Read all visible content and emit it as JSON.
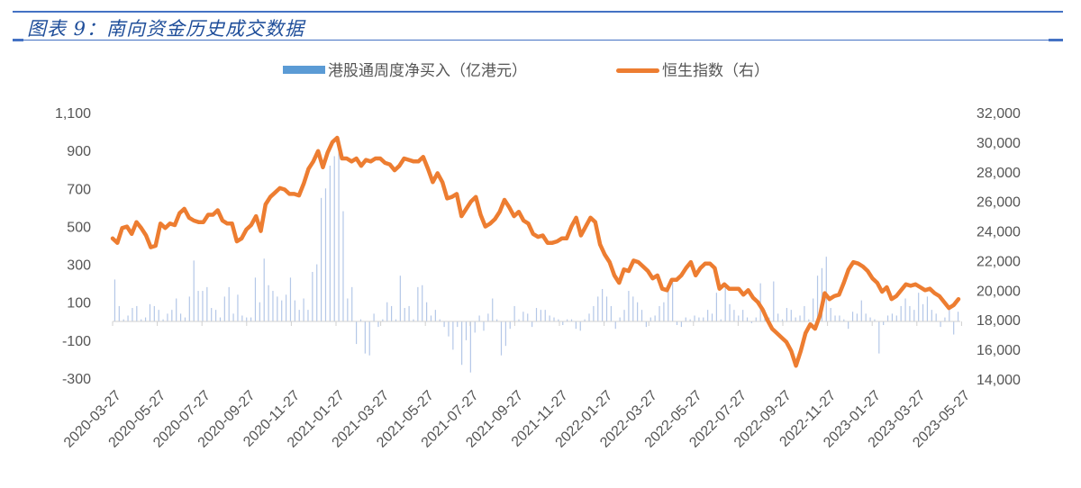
{
  "header": {
    "title": "图表 9：南向资金历史成交数据"
  },
  "legend": {
    "bar_label": "港股通周度净买入（亿港元）",
    "line_label": "恒生指数（右）"
  },
  "colors": {
    "bar": "#5b9bd5",
    "bar_thin": "#b4c7e7",
    "line": "#ed7d31",
    "rule": "#4472c4",
    "axis_text": "#555555"
  },
  "chart_data": {
    "type": "bar+line",
    "title": "图表 9：南向资金历史成交数据",
    "xlabel": "",
    "ylabel_left": "港股通周度净买入（亿港元）",
    "ylabel_right": "恒生指数",
    "left_ylim": [
      -300,
      1100
    ],
    "left_ticks": [
      "1,100",
      "900",
      "700",
      "500",
      "300",
      "100",
      "-100",
      "-300"
    ],
    "right_ylim": [
      14000,
      32000
    ],
    "right_ticks": [
      "32,000",
      "30,000",
      "28,000",
      "26,000",
      "24,000",
      "22,000",
      "20,000",
      "18,000",
      "16,000",
      "14,000"
    ],
    "x_ticks": [
      "2020-03-27",
      "2020-05-27",
      "2020-07-27",
      "2020-09-27",
      "2020-11-27",
      "2021-01-27",
      "2021-03-27",
      "2021-05-27",
      "2021-07-27",
      "2021-09-27",
      "2021-11-27",
      "2022-01-27",
      "2022-03-27",
      "2022-05-27",
      "2022-07-27",
      "2022-09-27",
      "2022-11-27",
      "2023-01-27",
      "2023-03-27",
      "2023-05-27"
    ],
    "grid": false,
    "legend_position": "top",
    "series": [
      {
        "name": "港股通周度净买入（亿港元）",
        "type": "bar",
        "axis": "left",
        "values": [
          220,
          80,
          10,
          30,
          70,
          80,
          10,
          20,
          90,
          80,
          60,
          10,
          40,
          60,
          120,
          40,
          20,
          130,
          320,
          160,
          160,
          180,
          70,
          60,
          20,
          130,
          180,
          40,
          140,
          30,
          20,
          20,
          230,
          100,
          330,
          190,
          160,
          130,
          110,
          140,
          230,
          110,
          60,
          120,
          60,
          260,
          300,
          650,
          700,
          820,
          870,
          900,
          580,
          120,
          180,
          -120,
          10,
          -170,
          -180,
          40,
          -30,
          10,
          100,
          80,
          10,
          240,
          70,
          80,
          10,
          180,
          190,
          100,
          30,
          60,
          10,
          -30,
          -80,
          -150,
          -30,
          -230,
          -100,
          -270,
          -60,
          30,
          -50,
          40,
          120,
          10,
          -180,
          -130,
          -40,
          80,
          10,
          50,
          40,
          -30,
          70,
          60,
          60,
          30,
          20,
          10,
          -20,
          10,
          10,
          -40,
          -50,
          10,
          40,
          80,
          130,
          170,
          130,
          80,
          -40,
          20,
          60,
          160,
          130,
          100,
          60,
          -30,
          20,
          30,
          80,
          100,
          170,
          210,
          -20,
          -30,
          20,
          10,
          30,
          20,
          20,
          60,
          40,
          150,
          10,
          190,
          90,
          60,
          30,
          60,
          20,
          -10,
          20,
          200,
          60,
          20,
          210,
          40,
          10,
          70,
          60,
          20,
          30,
          80,
          10,
          120,
          240,
          280,
          340,
          70,
          30,
          30,
          10,
          -40,
          50,
          40,
          110,
          40,
          20,
          10,
          -170,
          -20,
          30,
          40,
          30,
          80,
          120,
          80,
          60,
          150,
          90,
          130,
          60,
          40,
          -30,
          20,
          60,
          -70,
          50
        ]
      },
      {
        "name": "恒生指数（右）",
        "type": "line",
        "axis": "right",
        "values": [
          23500,
          23200,
          24200,
          24300,
          23800,
          24600,
          24200,
          23700,
          22900,
          23000,
          24500,
          24200,
          24500,
          24400,
          25200,
          25500,
          24900,
          24700,
          24600,
          24600,
          25100,
          25100,
          25400,
          24700,
          24500,
          24500,
          23300,
          23500,
          24100,
          24400,
          25000,
          24000,
          25800,
          26300,
          26600,
          26900,
          26800,
          26500,
          26500,
          26400,
          27200,
          28200,
          28700,
          29400,
          28300,
          29300,
          30000,
          30300,
          28900,
          28900,
          28700,
          28900,
          28400,
          28800,
          28700,
          28900,
          28900,
          28600,
          28500,
          28100,
          28400,
          28900,
          28800,
          28700,
          28700,
          29000,
          28200,
          27300,
          27900,
          27300,
          26200,
          26300,
          26500,
          25000,
          25500,
          26000,
          26300,
          25100,
          24300,
          24500,
          24800,
          25300,
          26100,
          25600,
          25000,
          25300,
          24700,
          24500,
          23800,
          23600,
          23700,
          23200,
          23200,
          23300,
          23500,
          23500,
          24300,
          24900,
          23700,
          24300,
          24900,
          24600,
          23100,
          22400,
          21900,
          21000,
          20500,
          21400,
          21300,
          22000,
          21900,
          21600,
          21300,
          20800,
          21000,
          20100,
          20000,
          20700,
          20700,
          21000,
          21500,
          21900,
          21000,
          21500,
          21800,
          21800,
          21500,
          20100,
          20400,
          20100,
          20100,
          20100,
          19700,
          20000,
          19500,
          19200,
          18700,
          18000,
          17400,
          17100,
          16800,
          16500,
          15900,
          14900,
          15900,
          17100,
          17700,
          17400,
          18300,
          19800,
          19400,
          19600,
          19700,
          20500,
          21400,
          21900,
          21800,
          21600,
          21300,
          20800,
          20500,
          19900,
          20200,
          19400,
          19600,
          20000,
          20400,
          20300,
          20400,
          20200,
          20000,
          20100,
          19800,
          19600,
          19200,
          18800,
          19000,
          19400
        ]
      }
    ]
  }
}
